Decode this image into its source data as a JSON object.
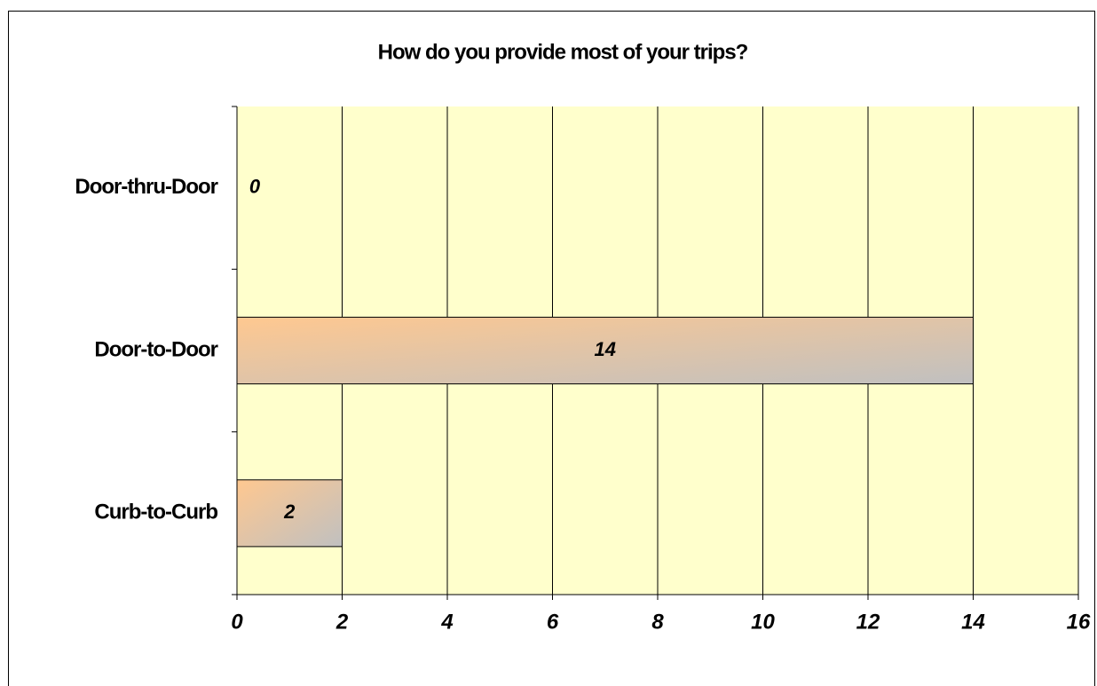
{
  "chart_data": {
    "type": "barh",
    "title": "How do you provide most of your trips?",
    "categories": [
      "Door-thru-Door",
      "Door-to-Door",
      "Curb-to-Curb"
    ],
    "values": [
      0,
      14,
      2
    ],
    "gradient": [
      "#ffc890",
      "#c0c0c0"
    ],
    "plot_background": "#ffffcc",
    "xlim": [
      0,
      16
    ],
    "xticks": [
      0,
      2,
      4,
      6,
      8,
      10,
      12,
      14,
      16
    ],
    "grid": true
  }
}
